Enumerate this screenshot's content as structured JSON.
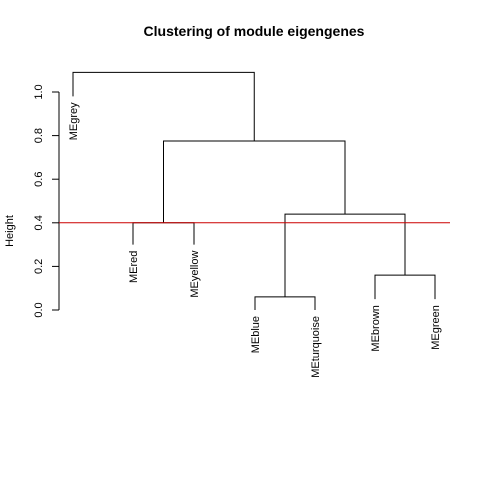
{
  "chart_data": {
    "type": "dendrogram",
    "title": "Clustering of module eigengenes",
    "ylabel": "Height",
    "ylim": [
      0,
      1.1
    ],
    "yticks": [
      "0.0",
      "0.2",
      "0.4",
      "0.6",
      "0.8",
      "1.0"
    ],
    "ytick_values": [
      0,
      0.2,
      0.4,
      0.6,
      0.8,
      1.0
    ],
    "leaves": [
      "MEgrey",
      "MEred",
      "MEyellow",
      "MEblue",
      "MEturquoise",
      "MEbrown",
      "MEgreen"
    ],
    "merges": [
      {
        "left": "MEblue",
        "right": "MEturquoise",
        "height": 0.06
      },
      {
        "left": "MEbrown",
        "right": "MEgreen",
        "height": 0.16
      },
      {
        "left": "MEblue+MEturquoise",
        "right": "MEbrown+MEgreen",
        "height": 0.44
      },
      {
        "left": "MEred",
        "right": "MEyellow",
        "height": 0.4
      },
      {
        "left": "MEred+MEyellow",
        "right": "MEblue+MEturquoise+MEbrown+MEgreen",
        "height": 0.775
      },
      {
        "left": "MEgrey",
        "right": "rest",
        "height": 1.09
      }
    ],
    "cut_height": 0.4,
    "cut_color": "#cc0000",
    "grid": false,
    "legend": "none"
  }
}
